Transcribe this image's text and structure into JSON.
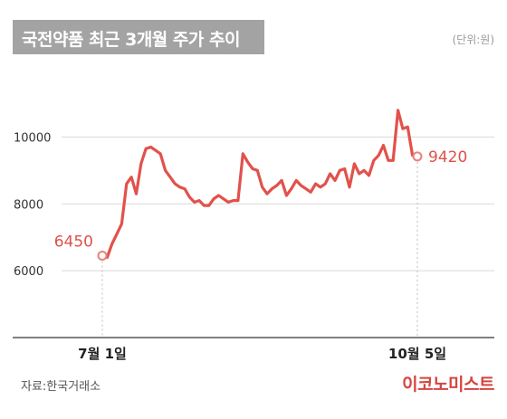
{
  "header": {
    "title": "국전약품 최근 3개월 주가 추이",
    "unit": "(단위:원)"
  },
  "footer": {
    "source": "자료:한국거래소",
    "brand": "이코노미스트"
  },
  "colors": {
    "line": "#e2514b",
    "grid": "#d9d9d9",
    "title_bar": "#a3a3a3",
    "brand": "#d7443e"
  },
  "chart_data": {
    "type": "line",
    "title": "국전약품 최근 3개월 주가 추이",
    "unit": "(단위:원)",
    "ylim": [
      4000,
      11500
    ],
    "yticks": [
      6000,
      8000,
      10000
    ],
    "grid": true,
    "x_tick_labels": [
      {
        "index": 0,
        "label": "7월 1일"
      },
      {
        "index": 65,
        "label": "10월 5일"
      }
    ],
    "series": [
      {
        "values": [
          6450,
          6400,
          6800,
          7100,
          7400,
          8600,
          8800,
          8300,
          9200,
          9650,
          9700,
          9600,
          9500,
          9000,
          8800,
          8600,
          8500,
          8450,
          8200,
          8050,
          8100,
          7950,
          7950,
          8150,
          8250,
          8150,
          8050,
          8100,
          8100,
          9500,
          9250,
          9050,
          9000,
          8500,
          8300,
          8450,
          8550,
          8700,
          8250,
          8450,
          8700,
          8550,
          8450,
          8350,
          8600,
          8500,
          8600,
          8900,
          8700,
          9000,
          9050,
          8500,
          9200,
          8900,
          9000,
          8850,
          9300,
          9450,
          9750,
          9300,
          9300,
          10800,
          10250,
          10300,
          9450,
          9420
        ]
      }
    ],
    "annotations": [
      {
        "index": 0,
        "value": 6450,
        "label": "6450"
      },
      {
        "index": 65,
        "value": 9420,
        "label": "9420"
      }
    ]
  }
}
